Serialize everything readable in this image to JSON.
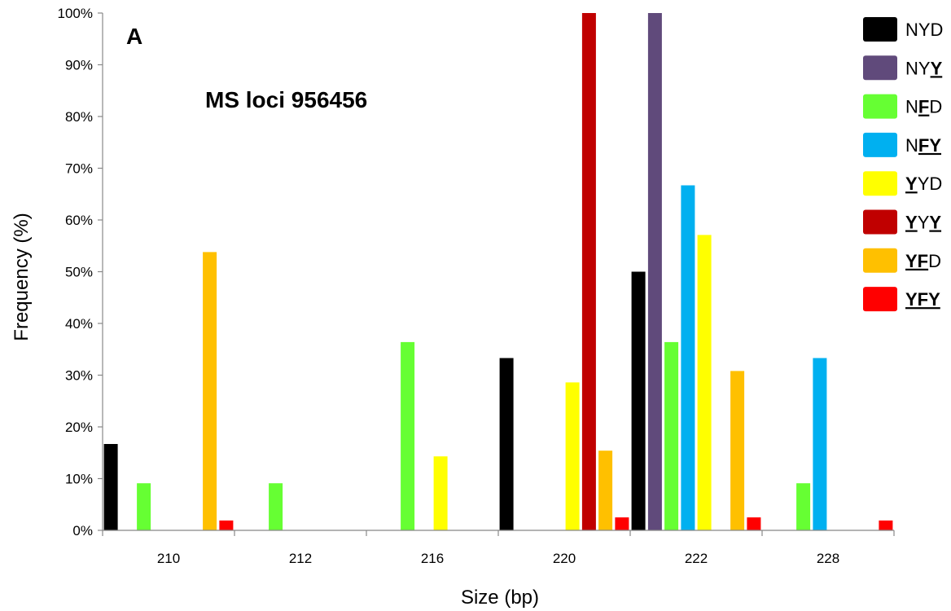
{
  "chart_data": {
    "type": "bar",
    "panel_label": "A",
    "title": "MS loci 956456",
    "xlabel": "Size (bp)",
    "ylabel": "Frequency (%)",
    "ylim": [
      0,
      100
    ],
    "yticks": [
      "0%",
      "10%",
      "20%",
      "30%",
      "40%",
      "50%",
      "60%",
      "70%",
      "80%",
      "90%",
      "100%"
    ],
    "categories": [
      "210",
      "212",
      "216",
      "220",
      "222",
      "228"
    ],
    "grid": false,
    "legend_position": "right",
    "series": [
      {
        "name": "NYD",
        "color": "#000000",
        "values": [
          16.7,
          0,
          0,
          33.3,
          50.0,
          0
        ]
      },
      {
        "name": "NYY",
        "color": "#604A7B",
        "values": [
          0,
          0,
          0,
          0,
          100,
          0
        ]
      },
      {
        "name": "NFD",
        "color": "#66FF33",
        "values": [
          9.1,
          9.1,
          36.4,
          0,
          36.4,
          9.1
        ]
      },
      {
        "name": "NFY",
        "color": "#00B0F0",
        "values": [
          0,
          0,
          0,
          0,
          66.7,
          33.3
        ]
      },
      {
        "name": "YYD",
        "color": "#FFFF00",
        "values": [
          0,
          0,
          14.3,
          28.6,
          57.1,
          0
        ]
      },
      {
        "name": "YYY",
        "color": "#C00000",
        "values": [
          0,
          0,
          0,
          100,
          0,
          0
        ]
      },
      {
        "name": "YFD",
        "color": "#FFC000",
        "values": [
          53.8,
          0,
          0,
          15.4,
          30.8,
          0
        ]
      },
      {
        "name": "YFY",
        "color": "#FF0000",
        "values": [
          1.9,
          0,
          0,
          2.5,
          2.5,
          1.9
        ]
      }
    ],
    "legend": [
      {
        "label": [
          {
            "t": "NYD",
            "u": false
          }
        ],
        "color": "#000000"
      },
      {
        "label": [
          {
            "t": "NY",
            "u": false
          },
          {
            "t": "Y",
            "u": true
          }
        ],
        "color": "#604A7B"
      },
      {
        "label": [
          {
            "t": "N",
            "u": false
          },
          {
            "t": "F",
            "u": true
          },
          {
            "t": "D",
            "u": false
          }
        ],
        "color": "#66FF33"
      },
      {
        "label": [
          {
            "t": "N",
            "u": false
          },
          {
            "t": "FY",
            "u": true
          }
        ],
        "color": "#00B0F0"
      },
      {
        "label": [
          {
            "t": "Y",
            "u": true
          },
          {
            "t": "YD",
            "u": false
          }
        ],
        "color": "#FFFF00"
      },
      {
        "label": [
          {
            "t": "Y",
            "u": true
          },
          {
            "t": "Y",
            "u": false
          },
          {
            "t": "Y",
            "u": true
          }
        ],
        "color": "#C00000"
      },
      {
        "label": [
          {
            "t": "YF",
            "u": true
          },
          {
            "t": "D",
            "u": false
          }
        ],
        "color": "#FFC000"
      },
      {
        "label": [
          {
            "t": "YFY",
            "u": true
          }
        ],
        "color": "#FF0000"
      }
    ]
  }
}
